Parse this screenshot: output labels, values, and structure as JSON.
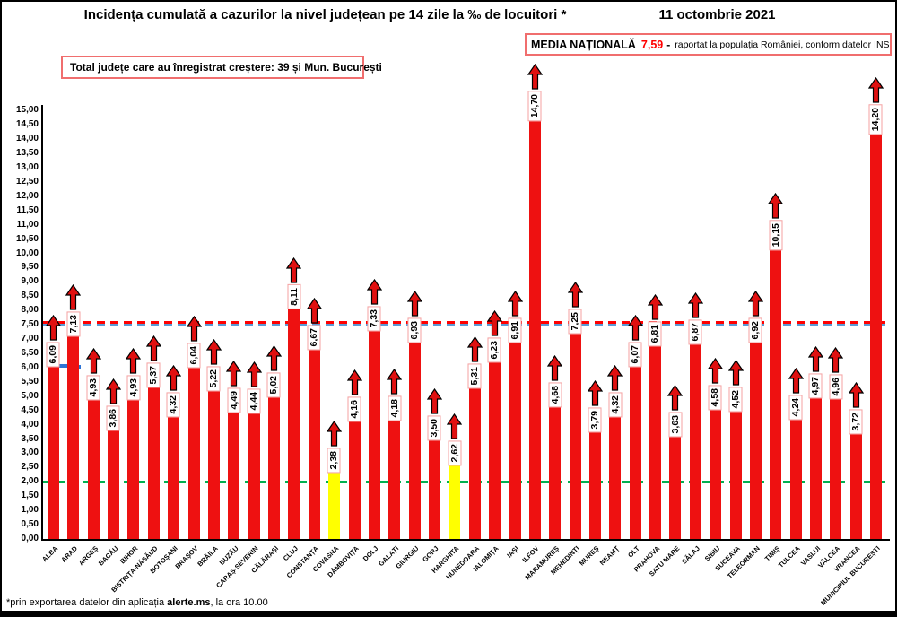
{
  "header": {
    "title": "Incidența cumulată a cazurilor la nivel județean pe 14 zile la ‰ de locuitori *",
    "date": "11 octombrie 2021"
  },
  "national_average_box": {
    "label": "MEDIA NAȚIONALĂ",
    "value": "7,59",
    "dash": "-",
    "suffix": "raportat la populația României, conform datelor INS"
  },
  "growth_box": {
    "text": "Total județe care au înregistrat creștere:  39 și Mun. București"
  },
  "footnote": {
    "prefix": "*prin exportarea datelor din aplicația ",
    "bold": "alerte.ms",
    "suffix": ", la ora 10.00"
  },
  "colors": {
    "bar_red": "#ee1111",
    "bar_yellow": "#ffff00",
    "arrow_red": "#e01010",
    "label_box_border": "#f4a1a1",
    "national_avg_line": "#ff0000",
    "secondary_avg_line": "#5b9bd5",
    "threshold_line": "#00b050",
    "value_text_red": "#ff0000"
  },
  "chart_data": {
    "type": "bar",
    "title": "Incidența cumulată a cazurilor la nivel județean pe 14 zile la ‰ de locuitori *",
    "xlabel": "",
    "ylabel": "",
    "ylim": [
      0,
      15.5
    ],
    "ytick_step": 0.5,
    "ytick_max": 15,
    "decimal_separator": ",",
    "legend": "none",
    "grid": "off",
    "categories": [
      "ALBA",
      "ARAD",
      "ARGEȘ",
      "BACĂU",
      "BIHOR",
      "BISTRIȚA-NĂSĂUD",
      "BOTOȘANI",
      "BRAȘOV",
      "BRĂILA",
      "BUZĂU",
      "CARAȘ-SEVERIN",
      "CĂLĂRAȘI",
      "CLUJ",
      "CONSTANȚA",
      "COVASNA",
      "DÂMBOVIȚA",
      "DOLJ",
      "GALAȚI",
      "GIURGIU",
      "GORJ",
      "HARGHITA",
      "HUNEDOARA",
      "IALOMIȚA",
      "IAȘI",
      "ILFOV",
      "MARAMUREȘ",
      "MEHEDINȚI",
      "MUREȘ",
      "NEAMȚ",
      "OLT",
      "PRAHOVA",
      "SATU MARE",
      "SĂLAJ",
      "SIBIU",
      "SUCEAVA",
      "TELEORMAN",
      "TIMIȘ",
      "TULCEA",
      "VASLUI",
      "VÂLCEA",
      "VRANCEA",
      "MUNICIPIUL BUCUREȘTI"
    ],
    "values": [
      6.09,
      7.13,
      4.93,
      3.86,
      4.93,
      5.37,
      4.32,
      6.04,
      5.22,
      4.49,
      4.44,
      5.02,
      8.11,
      6.67,
      2.38,
      4.16,
      7.33,
      4.18,
      6.93,
      3.5,
      2.62,
      5.31,
      6.23,
      6.91,
      14.7,
      4.68,
      7.25,
      3.79,
      4.32,
      6.07,
      6.81,
      3.63,
      6.87,
      4.58,
      4.52,
      6.92,
      10.15,
      4.24,
      4.97,
      4.96,
      3.72,
      14.2
    ],
    "value_labels": [
      "6,09",
      "7,13",
      "4,93",
      "3,86",
      "4,93",
      "5,37",
      "4,32",
      "6,04",
      "5,22",
      "4,49",
      "4,44",
      "5,02",
      "8,11",
      "6,67",
      "2,38",
      "4,16",
      "7,33",
      "4,18",
      "6,93",
      "3,50",
      "2,62",
      "5,31",
      "6,23",
      "6,91",
      "14,70",
      "4,68",
      "7,25",
      "3,79",
      "4,32",
      "6,07",
      "6,81",
      "3,63",
      "6,87",
      "4,58",
      "4,52",
      "6,92",
      "10,15",
      "4,24",
      "4,97",
      "4,96",
      "3,72",
      "14,20"
    ],
    "yellow_bar_indices": [
      14,
      20
    ],
    "reference_lines": [
      {
        "name": "media-nationala",
        "value": 7.59,
        "color": "#ff0000",
        "style": "dashed"
      },
      {
        "name": "secondary-average",
        "value": 7.5,
        "color": "#5b9bd5",
        "style": "dashed"
      },
      {
        "name": "threshold-2",
        "value": 2.0,
        "color": "#00b050",
        "style": "dashed"
      }
    ]
  }
}
